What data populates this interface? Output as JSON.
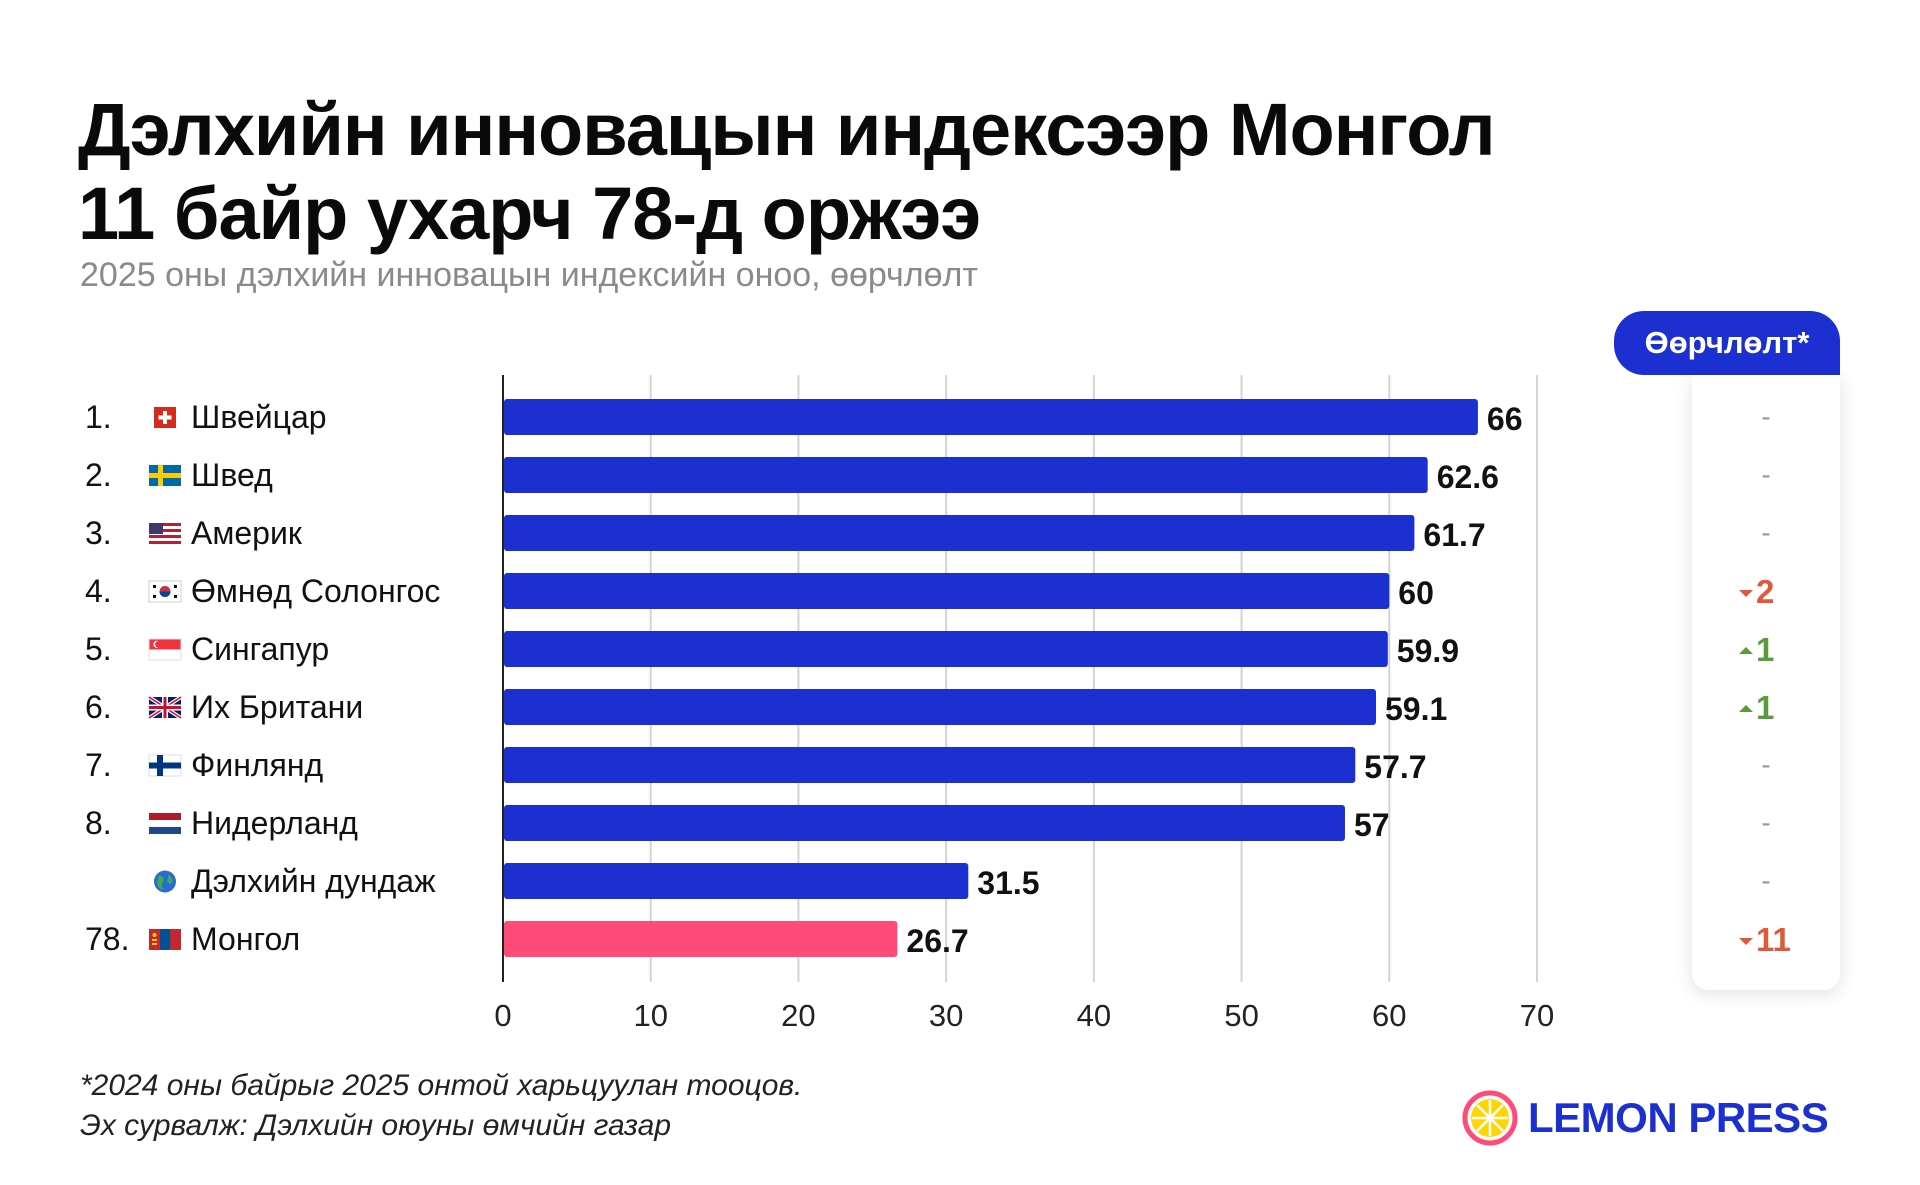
{
  "title_line1": "Дэлхийн инновацын индексээр Монгол",
  "title_line2": "11 байр ухарч 78-д оржээ",
  "subtitle": "2025 оны дэлхийн инновацын индексийн оноо, өөрчлөлт",
  "change_header": "Өөрчлөлт*",
  "footnote_line1": "*2024 оны байрыг 2025 онтой харьцуулан тооцов.",
  "footnote_line2": "Эх сурвалж: Дэлхийн оюуны өмчийн газар",
  "logo_text": "LEMON PRESS",
  "colors": {
    "bar": "#1c2fd1",
    "highlight": "#ff4b78",
    "down": "#e05a3a",
    "up": "#5a9b3c",
    "neutral": "#999999",
    "grid": "#d4d4d4",
    "logo_ring": "#ff4b78",
    "logo_fill": "#ffd600"
  },
  "chart_data": {
    "type": "bar",
    "orientation": "horizontal",
    "xlim": [
      0,
      70
    ],
    "xticks": [
      0,
      10,
      20,
      30,
      40,
      50,
      60,
      70
    ],
    "grid": true,
    "rows": [
      {
        "rank": "1.",
        "flag": "flag-switzerland",
        "label": "Швейцар",
        "value": 66,
        "value_label": "66",
        "change": "-",
        "change_dir": "none"
      },
      {
        "rank": "2.",
        "flag": "flag-sweden",
        "label": "Швед",
        "value": 62.6,
        "value_label": "62.6",
        "change": "-",
        "change_dir": "none"
      },
      {
        "rank": "3.",
        "flag": "flag-usa",
        "label": "Америк",
        "value": 61.7,
        "value_label": "61.7",
        "change": "-",
        "change_dir": "none"
      },
      {
        "rank": "4.",
        "flag": "flag-south-korea",
        "label": "Өмнөд Солонгос",
        "value": 60,
        "value_label": "60",
        "change": "2",
        "change_dir": "down"
      },
      {
        "rank": "5.",
        "flag": "flag-singapore",
        "label": "Сингапур",
        "value": 59.9,
        "value_label": "59.9",
        "change": "1",
        "change_dir": "up"
      },
      {
        "rank": "6.",
        "flag": "flag-uk",
        "label": "Их Британи",
        "value": 59.1,
        "value_label": "59.1",
        "change": "1",
        "change_dir": "up"
      },
      {
        "rank": "7.",
        "flag": "flag-finland",
        "label": "Финлянд",
        "value": 57.7,
        "value_label": "57.7",
        "change": "-",
        "change_dir": "none"
      },
      {
        "rank": "8.",
        "flag": "flag-netherlands",
        "label": "Нидерланд",
        "value": 57,
        "value_label": "57",
        "change": "-",
        "change_dir": "none"
      },
      {
        "rank": "",
        "flag": "globe-icon",
        "label": "Дэлхийн дундаж",
        "value": 31.5,
        "value_label": "31.5",
        "change": "-",
        "change_dir": "none"
      },
      {
        "rank": "78.",
        "flag": "flag-mongolia",
        "label": "Монгол",
        "value": 26.7,
        "value_label": "26.7",
        "change": "11",
        "change_dir": "down",
        "highlight": true
      }
    ]
  }
}
